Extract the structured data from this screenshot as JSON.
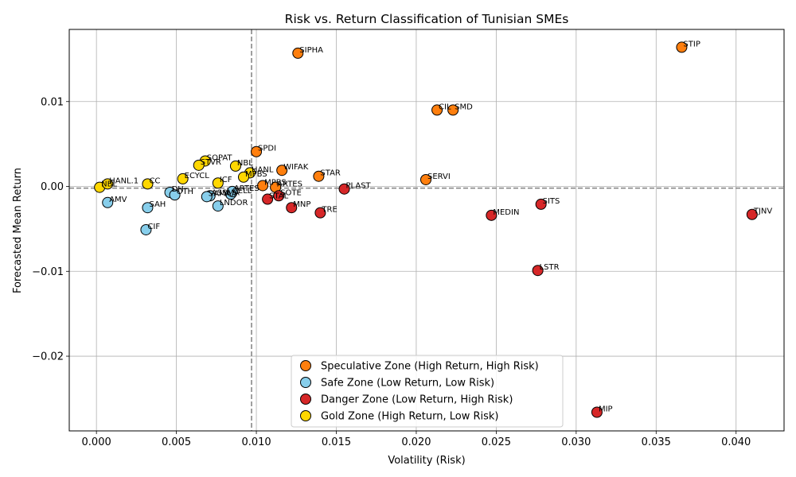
{
  "chart_data": {
    "type": "scatter",
    "title": "Risk vs. Return Classification of Tunisian SMEs",
    "xlabel": "Volatility (Risk)",
    "ylabel": "Forecasted Mean Return",
    "xlim": [
      -0.0017,
      0.043
    ],
    "ylim": [
      -0.0288,
      0.0185
    ],
    "x_ticks": [
      0.0,
      0.005,
      0.01,
      0.015,
      0.02,
      0.025,
      0.03,
      0.035,
      0.04
    ],
    "x_tick_labels": [
      "0.000",
      "0.005",
      "0.010",
      "0.015",
      "0.020",
      "0.025",
      "0.030",
      "0.035",
      "0.040"
    ],
    "y_ticks": [
      -0.02,
      -0.01,
      0.0,
      0.01
    ],
    "y_tick_labels": [
      "−0.02",
      "−0.01",
      "0.00",
      "0.01"
    ],
    "grid": true,
    "threshold_x": 0.0097,
    "threshold_y": -0.0002,
    "legend_position": "lower-center",
    "colors": {
      "speculative": "#ff7f0e",
      "safe": "#87ceeb",
      "danger": "#d62728",
      "gold": "#ffd700"
    },
    "series": [
      {
        "key": "speculative",
        "name": "Speculative Zone (High Return, High Risk)",
        "points": [
          {
            "label": "STIP",
            "x": 0.0366,
            "y": 0.0164
          },
          {
            "label": "SIPHA",
            "x": 0.0126,
            "y": 0.0157
          },
          {
            "label": "CIL",
            "x": 0.0213,
            "y": 0.009
          },
          {
            "label": "SMD",
            "x": 0.0223,
            "y": 0.009
          },
          {
            "label": "SPDI",
            "x": 0.01,
            "y": 0.0041
          },
          {
            "label": "WIFAK",
            "x": 0.0116,
            "y": 0.0019
          },
          {
            "label": "STAR",
            "x": 0.0139,
            "y": 0.0012
          },
          {
            "label": "SERVI",
            "x": 0.0206,
            "y": 0.0008
          },
          {
            "label": "MPBS",
            "x": 0.0104,
            "y": 0.0001
          },
          {
            "label": "ARTES",
            "x": 0.0112,
            "y": -0.0001
          }
        ]
      },
      {
        "key": "safe",
        "name": "Safe Zone (Low Return, Low Risk)",
        "points": [
          {
            "label": "AMV",
            "x": 0.0007,
            "y": -0.0019
          },
          {
            "label": "SAH",
            "x": 0.0032,
            "y": -0.0025
          },
          {
            "label": "CIF",
            "x": 0.0031,
            "y": -0.0051
          },
          {
            "label": "DH",
            "x": 0.0046,
            "y": -0.0007
          },
          {
            "label": "OTH",
            "x": 0.0049,
            "y": -0.001
          },
          {
            "label": "ASSMA",
            "x": 0.0071,
            "y": -0.0011
          },
          {
            "label": "SAMAA",
            "x": 0.0069,
            "y": -0.0012
          },
          {
            "label": "CELL",
            "x": 0.0084,
            "y": -0.0009
          },
          {
            "label": "LNDOR",
            "x": 0.0076,
            "y": -0.0023
          },
          {
            "label": "ARTES",
            "x": 0.0085,
            "y": -0.0006
          }
        ]
      },
      {
        "key": "danger",
        "name": "Danger Zone (Low Return, High Risk)",
        "points": [
          {
            "label": "MIP",
            "x": 0.0313,
            "y": -0.0266
          },
          {
            "label": "LSTR",
            "x": 0.0276,
            "y": -0.0099
          },
          {
            "label": "SITS",
            "x": 0.0278,
            "y": -0.0021
          },
          {
            "label": "MEDIN",
            "x": 0.0247,
            "y": -0.0034
          },
          {
            "label": "TJNV",
            "x": 0.041,
            "y": -0.0033
          },
          {
            "label": "PLAST",
            "x": 0.0155,
            "y": -0.0003
          },
          {
            "label": "TRE",
            "x": 0.014,
            "y": -0.0031
          },
          {
            "label": "MNP",
            "x": 0.0122,
            "y": -0.0025
          },
          {
            "label": "STAL",
            "x": 0.0107,
            "y": -0.0015
          },
          {
            "label": "SOTE",
            "x": 0.0114,
            "y": -0.0011
          }
        ]
      },
      {
        "key": "gold",
        "name": "Gold Zone (High Return, Low Risk)",
        "points": [
          {
            "label": "NBL",
            "x": 0.0002,
            "y": -0.0001
          },
          {
            "label": "HANL.1",
            "x": 0.0007,
            "y": 0.0003
          },
          {
            "label": "CC",
            "x": 0.0032,
            "y": 0.0003
          },
          {
            "label": "ECYCL",
            "x": 0.0054,
            "y": 0.0009
          },
          {
            "label": "SOPAT",
            "x": 0.0068,
            "y": 0.003
          },
          {
            "label": "STVR",
            "x": 0.0064,
            "y": 0.0025
          },
          {
            "label": "NBL",
            "x": 0.0087,
            "y": 0.0024
          },
          {
            "label": "HANL",
            "x": 0.0096,
            "y": 0.0016
          },
          {
            "label": "MPBS",
            "x": 0.0092,
            "y": 0.0011
          },
          {
            "label": "ICF",
            "x": 0.0076,
            "y": 0.0004
          }
        ]
      }
    ]
  }
}
